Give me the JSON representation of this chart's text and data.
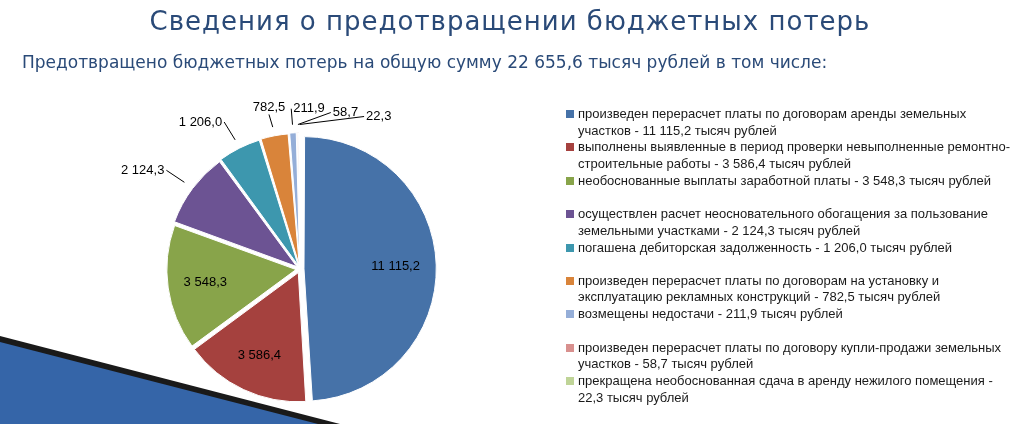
{
  "chart_data": {
    "type": "pie",
    "title": "Сведения о предотвращении бюджетных потерь",
    "subtitle": "Предотвращено бюджетных потерь на общую сумму 22 655,6 тысяч рублей в том числе:",
    "categories": [
      "произведен перерасчет платы по договорам аренды земельных участков - 11 115,2 тысяч рублей",
      "выполнены выявленные в период проверки невыполненные ремонтно-строительные работы - 3 586,4 тысяч рублей",
      "необоснованные выплаты заработной платы - 3 548,3 тысяч рублей",
      "осуществлен расчет неосновательного обогащения за пользование земельными участками - 2 124,3 тысяч рублей",
      "погашена дебиторская задолженность - 1 206,0 тысяч рублей",
      "произведен перерасчет платы по договорам на установку и эксплуатацию рекламных конструкций - 782,5 тысяч рублей",
      "возмещены недостачи - 211,9 тысяч рублей",
      "произведен перерасчет платы по договору купли-продажи земельных участков - 58,7 тысяч рублей",
      "прекращена необоснованная сдача в аренду нежилого помещения - 22,3 тысяч рублей"
    ],
    "values": [
      11115.2,
      3586.4,
      3548.3,
      2124.3,
      1206.0,
      782.5,
      211.9,
      58.7,
      22.3
    ],
    "value_labels": [
      "11 115,2",
      "3 586,4",
      "3 548,3",
      "2 124,3",
      "1 206,0",
      "782,5",
      "211,9",
      "58,7",
      "22,3"
    ],
    "colors": [
      "#4672a8",
      "#a5413e",
      "#88a44a",
      "#6c5393",
      "#3d97ae",
      "#d9843a",
      "#95aed8",
      "#d8908e",
      "#bfd497"
    ],
    "legend": "right"
  }
}
